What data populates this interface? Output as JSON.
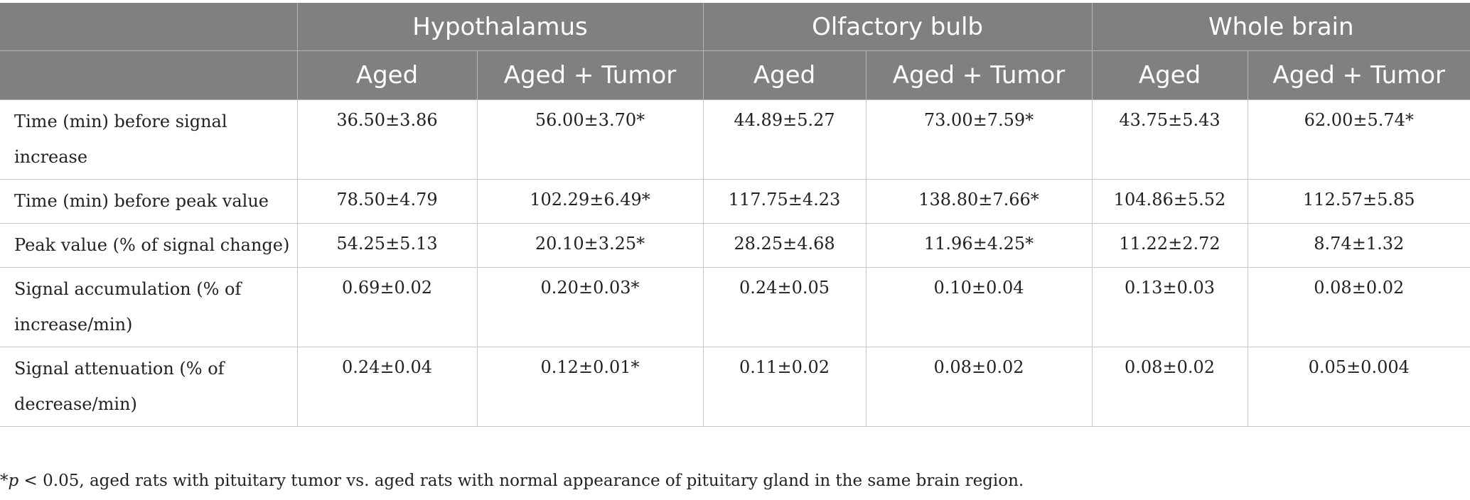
{
  "header": {
    "groups": [
      "Hypothalamus",
      "Olfactory bulb",
      "Whole brain"
    ],
    "subcols": [
      "Aged",
      "Aged + Tumor",
      "Aged",
      "Aged + Tumor",
      "Aged",
      "Aged + Tumor"
    ]
  },
  "rows": [
    {
      "label": "Time (min) before signal increase",
      "values": [
        "36.50±3.86",
        "56.00±3.70*",
        "44.89±5.27",
        "73.00±7.59*",
        "43.75±5.43",
        "62.00±5.74*"
      ]
    },
    {
      "label": "Time (min) before peak value",
      "values": [
        "78.50±4.79",
        "102.29±6.49*",
        "117.75±4.23",
        "138.80±7.66*",
        "104.86±5.52",
        "112.57±5.85"
      ]
    },
    {
      "label": "Peak value (% of signal change)",
      "values": [
        "54.25±5.13",
        "20.10±3.25*",
        "28.25±4.68",
        "11.96±4.25*",
        "11.22±2.72",
        "8.74±1.32"
      ]
    },
    {
      "label": "Signal accumulation (% of increase/min)",
      "values": [
        "0.69±0.02",
        "0.20±0.03*",
        "0.24±0.05",
        "0.10±0.04",
        "0.13±0.03",
        "0.08±0.02"
      ]
    },
    {
      "label": "Signal attenuation (% of decrease/min)",
      "values": [
        "0.24±0.04",
        "0.12±0.01*",
        "0.11±0.02",
        "0.08±0.02",
        "0.08±0.02",
        "0.05±0.004"
      ]
    }
  ],
  "footnote": {
    "star": "*",
    "p": "p",
    "text": " < 0.05, aged rats with pituitary tumor vs. aged rats with normal appearance of pituitary gland in the same brain region."
  }
}
